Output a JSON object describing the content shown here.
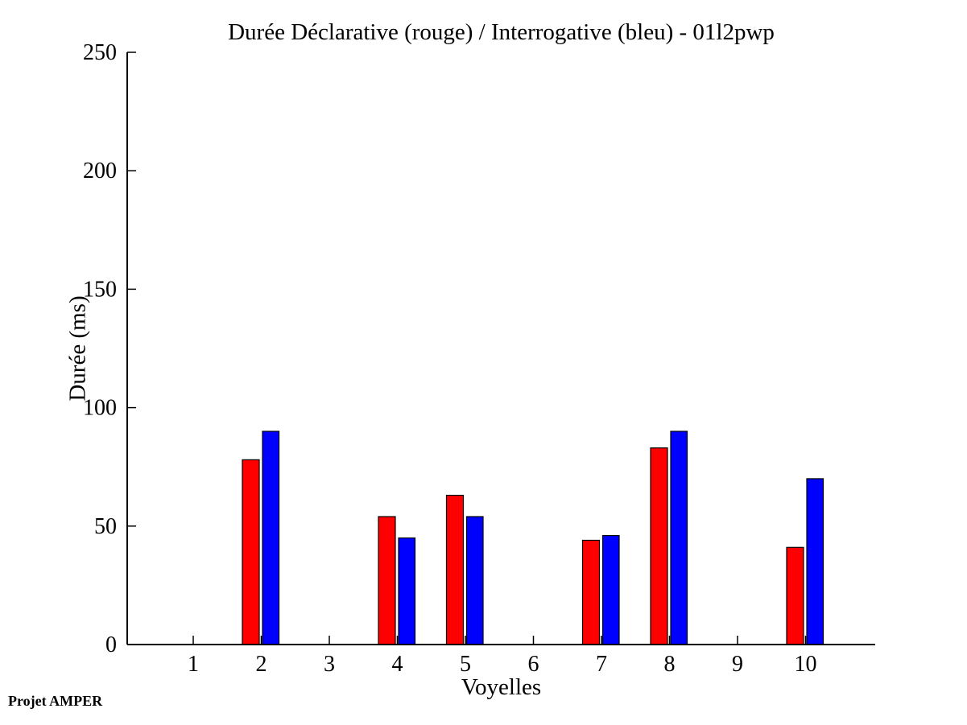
{
  "figure": {
    "title": "Durée Déclarative (rouge) / Interrogative (bleu) - 01l2pwp",
    "xlabel": "Voyelles",
    "ylabel": "Durée (ms)",
    "footer": "Projet AMPER"
  },
  "chart_data": {
    "type": "bar",
    "title": "Durée Déclarative (rouge) / Interrogative (bleu) - 01l2pwp",
    "xlabel": "Voyelles",
    "ylabel": "Durée (ms)",
    "categories": [
      "1",
      "2",
      "3",
      "4",
      "5",
      "6",
      "7",
      "8",
      "9",
      "10"
    ],
    "series": [
      {
        "name": "Déclarative",
        "color": "#ff0000",
        "values": [
          0,
          78,
          0,
          54,
          63,
          0,
          44,
          83,
          0,
          41
        ]
      },
      {
        "name": "Interrogative",
        "color": "#0000ff",
        "values": [
          0,
          90,
          0,
          45,
          54,
          0,
          46,
          90,
          0,
          70
        ]
      }
    ],
    "ylim": [
      0,
      250
    ],
    "y_ticks": [
      0,
      50,
      100,
      150,
      200,
      250
    ],
    "grid": false,
    "legend_position": "none",
    "bar_edge_color": "#000000",
    "axis_color": "#000000"
  }
}
